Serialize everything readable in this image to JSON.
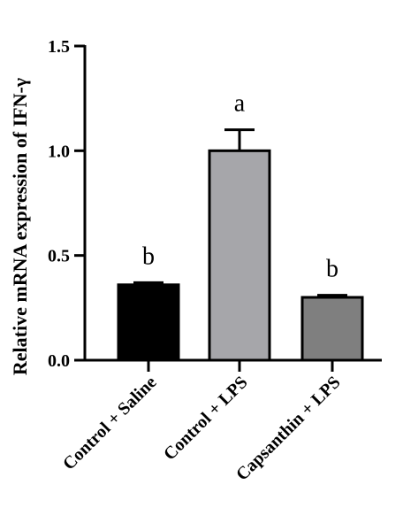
{
  "chart_data": {
    "type": "bar",
    "title": "",
    "xlabel": "",
    "ylabel": "Relative mRNA expression of IFN-γ",
    "ylim": [
      0,
      1.5
    ],
    "yticks": [
      0.0,
      0.5,
      1.0,
      1.5
    ],
    "ytick_labels": [
      "0.0",
      "0.5",
      "1.0",
      "1.5"
    ],
    "categories": [
      "Control + Saline",
      "Control + LPS",
      "Capsanthin + LPS"
    ],
    "values": [
      0.36,
      1.0,
      0.3
    ],
    "errors": [
      0.01,
      0.1,
      0.01
    ],
    "significance_labels": [
      "b",
      "a",
      "b"
    ],
    "bar_colors": [
      "#000000",
      "#a6a6aa",
      "#7f7f7f"
    ],
    "grid": false,
    "legend": "none"
  }
}
